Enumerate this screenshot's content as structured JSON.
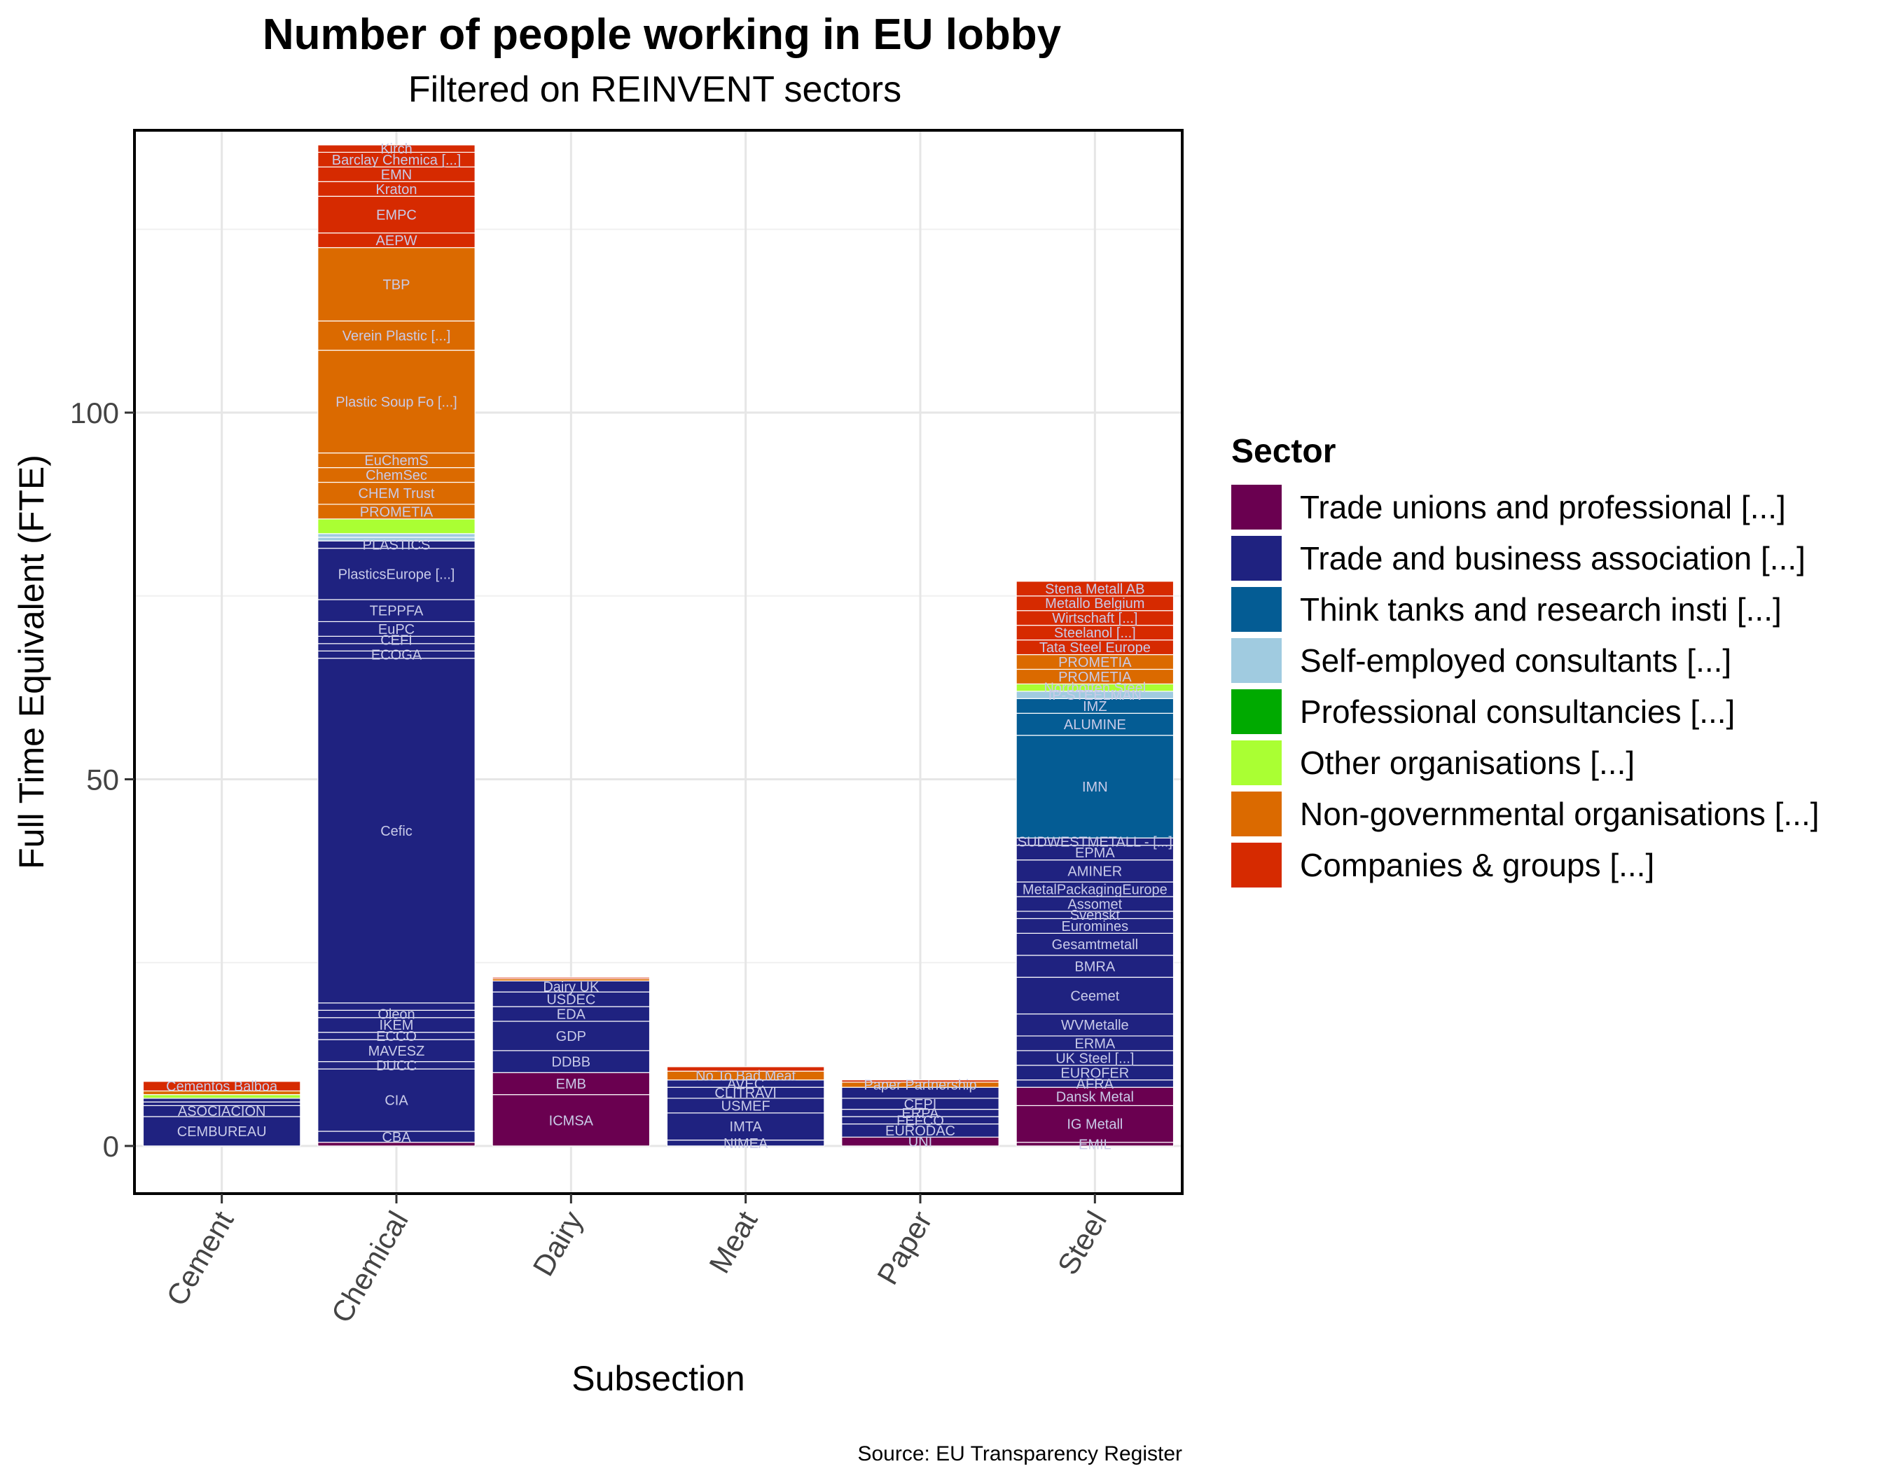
{
  "chart_data": {
    "type": "bar",
    "stacked": true,
    "title": "Number of people working in EU lobby",
    "subtitle": "Filtered on REINVENT sectors",
    "xlabel": "Subsection",
    "ylabel": "Full Time Equivalent (FTE)",
    "caption": "Source: EU Transparency Register",
    "ylim": [
      -6.5,
      138.5
    ],
    "y_ticks": [
      0,
      50,
      100
    ],
    "grid": true,
    "legend": {
      "title": "Sector",
      "position": "right",
      "entries": [
        {
          "name": "Trade unions and professional  [...]",
          "color": "#6a0050"
        },
        {
          "name": "Trade and business association [...]",
          "color": "#1f2280"
        },
        {
          "name": "Think tanks and research insti [...]",
          "color": "#045c94"
        },
        {
          "name": "Self-employed consultants [...]",
          "color": "#a0cbe0"
        },
        {
          "name": "Professional consultancies [...]",
          "color": "#00aa00"
        },
        {
          "name": "Other organisations [...]",
          "color": "#aaff33"
        },
        {
          "name": "Non-governmental organisations [...]",
          "color": "#db6a00"
        },
        {
          "name": "Companies & groups [...]",
          "color": "#d62a00"
        }
      ]
    },
    "categories": [
      "Cement",
      "Chemical",
      "Dairy",
      "Meat",
      "Paper",
      "Steel"
    ],
    "stacks": [
      {
        "category": "Cement",
        "segments": [
          {
            "sector": 1,
            "value": 4.0,
            "label": "CEMBUREAU"
          },
          {
            "sector": 1,
            "value": 1.5,
            "label": "ASOCIACION"
          },
          {
            "sector": 1,
            "value": 0.5,
            "label": ""
          },
          {
            "sector": 1,
            "value": 0.5,
            "label": ""
          },
          {
            "sector": 5,
            "value": 0.5,
            "label": ""
          },
          {
            "sector": 6,
            "value": 0.5,
            "label": ""
          },
          {
            "sector": 7,
            "value": 1.3,
            "label": "Cementos Balboa"
          }
        ]
      },
      {
        "category": "Chemical",
        "segments": [
          {
            "sector": 0,
            "value": 0.5,
            "label": ""
          },
          {
            "sector": 1,
            "value": 1.5,
            "label": "CBA"
          },
          {
            "sector": 1,
            "value": 8.5,
            "label": "CIA"
          },
          {
            "sector": 1,
            "value": 1.0,
            "label": "DUCC"
          },
          {
            "sector": 1,
            "value": 3.0,
            "label": "MAVESZ"
          },
          {
            "sector": 1,
            "value": 1.0,
            "label": "ECCO"
          },
          {
            "sector": 1,
            "value": 2.0,
            "label": "IKEM"
          },
          {
            "sector": 1,
            "value": 1.0,
            "label": "Oleon"
          },
          {
            "sector": 1,
            "value": 1.0,
            "label": ""
          },
          {
            "sector": 1,
            "value": 47.0,
            "label": "Cefic"
          },
          {
            "sector": 1,
            "value": 1.0,
            "label": "ECOGA"
          },
          {
            "sector": 1,
            "value": 1.0,
            "label": ""
          },
          {
            "sector": 1,
            "value": 1.0,
            "label": "CEFI"
          },
          {
            "sector": 1,
            "value": 2.0,
            "label": "EuPC"
          },
          {
            "sector": 1,
            "value": 3.0,
            "label": "TEPPFA"
          },
          {
            "sector": 1,
            "value": 7.0,
            "label": "PlasticsEurope [...]"
          },
          {
            "sector": 1,
            "value": 1.0,
            "label": "PLASTICS"
          },
          {
            "sector": 3,
            "value": 0.5,
            "label": ""
          },
          {
            "sector": 3,
            "value": 0.5,
            "label": ""
          },
          {
            "sector": 5,
            "value": 2.0,
            "label": ""
          },
          {
            "sector": 6,
            "value": 2.0,
            "label": "PROMETIA"
          },
          {
            "sector": 6,
            "value": 3.0,
            "label": "CHEM Trust"
          },
          {
            "sector": 6,
            "value": 2.0,
            "label": "ChemSec"
          },
          {
            "sector": 6,
            "value": 2.0,
            "label": "EuChemS"
          },
          {
            "sector": 6,
            "value": 14.0,
            "label": "Plastic Soup Fo [...]"
          },
          {
            "sector": 6,
            "value": 4.0,
            "label": "Verein Plastic  [...]"
          },
          {
            "sector": 6,
            "value": 10.0,
            "label": "TBP"
          },
          {
            "sector": 7,
            "value": 2.0,
            "label": "AEPW"
          },
          {
            "sector": 7,
            "value": 5.0,
            "label": "EMPC"
          },
          {
            "sector": 7,
            "value": 2.0,
            "label": "Kraton"
          },
          {
            "sector": 7,
            "value": 2.0,
            "label": "EMN"
          },
          {
            "sector": 7,
            "value": 2.0,
            "label": "Barclay Chemica [...]"
          },
          {
            "sector": 7,
            "value": 1.0,
            "label": "Kirch"
          }
        ]
      },
      {
        "category": "Dairy",
        "segments": [
          {
            "sector": 0,
            "value": 7.0,
            "label": "ICMSA"
          },
          {
            "sector": 0,
            "value": 3.0,
            "label": "EMB"
          },
          {
            "sector": 1,
            "value": 3.0,
            "label": "DDBB"
          },
          {
            "sector": 1,
            "value": 4.0,
            "label": "GDP"
          },
          {
            "sector": 1,
            "value": 2.0,
            "label": "EDA"
          },
          {
            "sector": 1,
            "value": 2.0,
            "label": "USDEC"
          },
          {
            "sector": 1,
            "value": 1.5,
            "label": "Dairy UK"
          },
          {
            "sector": 6,
            "value": 0.3,
            "label": ""
          },
          {
            "sector": 7,
            "value": 0.2,
            "label": ""
          }
        ]
      },
      {
        "category": "Meat",
        "segments": [
          {
            "sector": 1,
            "value": 0.8,
            "label": "NIMEA"
          },
          {
            "sector": 1,
            "value": 3.7,
            "label": "IMTA"
          },
          {
            "sector": 1,
            "value": 2.0,
            "label": "USMEF"
          },
          {
            "sector": 1,
            "value": 1.5,
            "label": "CLITRAVI"
          },
          {
            "sector": 1,
            "value": 1.0,
            "label": "AVEC"
          },
          {
            "sector": 6,
            "value": 1.2,
            "label": "No To Bad Meat"
          },
          {
            "sector": 7,
            "value": 0.6,
            "label": ""
          }
        ]
      },
      {
        "category": "Paper",
        "segments": [
          {
            "sector": 0,
            "value": 1.2,
            "label": "UNI"
          },
          {
            "sector": 1,
            "value": 1.8,
            "label": "EURODAC"
          },
          {
            "sector": 1,
            "value": 1.0,
            "label": "FEFCO"
          },
          {
            "sector": 1,
            "value": 1.0,
            "label": "ERPA"
          },
          {
            "sector": 1,
            "value": 1.5,
            "label": "CEPI"
          },
          {
            "sector": 1,
            "value": 1.5,
            "label": ""
          },
          {
            "sector": 6,
            "value": 0.7,
            "label": "Paper Partnership"
          },
          {
            "sector": 7,
            "value": 0.3,
            "label": ""
          }
        ]
      },
      {
        "category": "Steel",
        "segments": [
          {
            "sector": 0,
            "value": 0.5,
            "label": "EMIL"
          },
          {
            "sector": 0,
            "value": 5.0,
            "label": "IG Metall"
          },
          {
            "sector": 0,
            "value": 2.5,
            "label": "Dansk Metal"
          },
          {
            "sector": 1,
            "value": 1.0,
            "label": "AFRA"
          },
          {
            "sector": 1,
            "value": 2.0,
            "label": "EUROFER"
          },
          {
            "sector": 1,
            "value": 2.0,
            "label": "UK Steel [...]"
          },
          {
            "sector": 1,
            "value": 2.0,
            "label": "ERMA"
          },
          {
            "sector": 1,
            "value": 3.0,
            "label": "WVMetalle"
          },
          {
            "sector": 1,
            "value": 5.0,
            "label": "Ceemet"
          },
          {
            "sector": 1,
            "value": 3.0,
            "label": "BMRA"
          },
          {
            "sector": 1,
            "value": 3.0,
            "label": "Gesamtmetall"
          },
          {
            "sector": 1,
            "value": 2.0,
            "label": "Euromines"
          },
          {
            "sector": 1,
            "value": 1.0,
            "label": "Svenskt"
          },
          {
            "sector": 1,
            "value": 2.0,
            "label": "Assomet"
          },
          {
            "sector": 1,
            "value": 2.0,
            "label": "MetalPackagingEurope"
          },
          {
            "sector": 1,
            "value": 3.0,
            "label": "AMINER"
          },
          {
            "sector": 1,
            "value": 2.0,
            "label": "EPMA"
          },
          {
            "sector": 1,
            "value": 1.0,
            "label": "SUDWESTMETALL - [...]"
          },
          {
            "sector": 2,
            "value": 14.0,
            "label": "IMN"
          },
          {
            "sector": 2,
            "value": 3.0,
            "label": "ALUMINE"
          },
          {
            "sector": 2,
            "value": 2.0,
            "label": "IMZ"
          },
          {
            "sector": 3,
            "value": 1.0,
            "label": "IP-STEELMAN"
          },
          {
            "sector": 5,
            "value": 1.0,
            "label": "Norrbotten Steel"
          },
          {
            "sector": 6,
            "value": 2.0,
            "label": "PROMETIA"
          },
          {
            "sector": 6,
            "value": 2.0,
            "label": "PROMETIA"
          },
          {
            "sector": 7,
            "value": 2.0,
            "label": "Tata Steel Europe"
          },
          {
            "sector": 7,
            "value": 2.0,
            "label": "Steelanol [...]"
          },
          {
            "sector": 7,
            "value": 2.0,
            "label": "Wirtschaft [...]"
          },
          {
            "sector": 7,
            "value": 2.0,
            "label": "Metallo Belgium"
          },
          {
            "sector": 7,
            "value": 2.0,
            "label": "Stena Metall AB"
          }
        ]
      }
    ]
  }
}
